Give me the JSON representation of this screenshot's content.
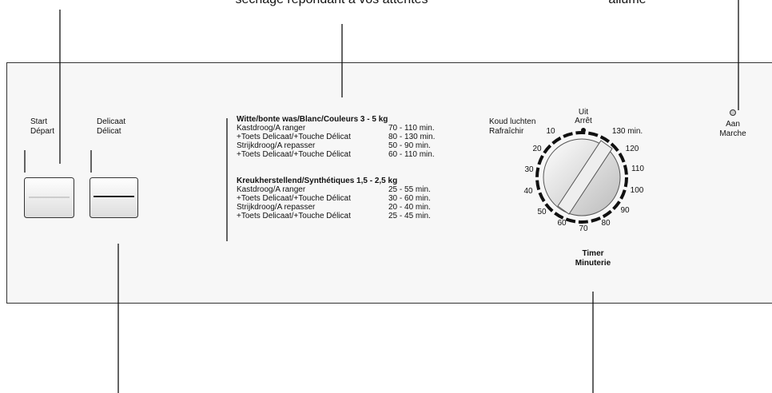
{
  "callouts": {
    "top_center": "séchage répondant à vos attentes",
    "top_right": "allumé"
  },
  "buttons": [
    {
      "line1": "Start",
      "line2": "Départ"
    },
    {
      "line1": "Delicaat",
      "line2": "Délicat"
    }
  ],
  "program_table": [
    {
      "heading": "Witte/bonte was/Blanc/Couleurs  3 - 5 kg",
      "rows": [
        [
          "Kastdroog/A ranger",
          "70 - 110 min."
        ],
        [
          "+Toets Delicaat/+Touche Délicat",
          "80 - 130 min."
        ],
        [
          "Strijkdroog/A repasser",
          "50 -   90 min."
        ],
        [
          "+Toets Delicaat/+Touche Délicat",
          "60 - 110 min."
        ]
      ]
    },
    {
      "heading": "Kreukherstellend/Synthétiques  1,5 - 2,5 kg",
      "rows": [
        [
          "Kastdroog/A ranger",
          "25 - 55 min."
        ],
        [
          "+Toets Delicaat/+Touche Délicat",
          "30 - 60 min."
        ],
        [
          "Strijkdroog/A repasser",
          "20 - 40 min."
        ],
        [
          "+Toets Delicaat/+Touche Délicat",
          "25 - 45 min."
        ]
      ]
    }
  ],
  "dial": {
    "cool_line1": "Koud luchten",
    "cool_line2": "Rafraîchir",
    "off_line1": "Uit",
    "off_line2": "Arrêt",
    "scale": [
      "10",
      "20",
      "30",
      "40",
      "50",
      "60",
      "70",
      "80",
      "90",
      "100",
      "110",
      "120",
      "130 min."
    ],
    "label_line1": "Timer",
    "label_line2": "Minuterie"
  },
  "indicator": {
    "line1": "Aan",
    "line2": "Marche"
  }
}
